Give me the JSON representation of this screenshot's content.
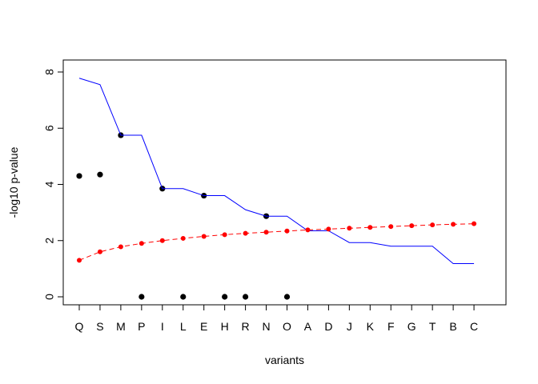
{
  "chart_data": {
    "type": "scatter",
    "title": "",
    "xlabel": "variants",
    "ylabel": "-log10 p-value",
    "ylim": [
      0,
      8
    ],
    "yticks": [
      0,
      2,
      4,
      6,
      8
    ],
    "grid": false,
    "legend": "none",
    "categories": [
      "Q",
      "S",
      "M",
      "P",
      "I",
      "L",
      "E",
      "H",
      "R",
      "N",
      "O",
      "A",
      "D",
      "J",
      "K",
      "F",
      "G",
      "T",
      "B",
      "C"
    ],
    "series": [
      {
        "kind": "points",
        "color": "#000000",
        "values": [
          4.3,
          4.35,
          5.75,
          0,
          3.85,
          0,
          3.6,
          0,
          0,
          2.87,
          0,
          null,
          null,
          null,
          null,
          null,
          null,
          null,
          null,
          null
        ]
      },
      {
        "kind": "step-line",
        "color": "#0000ff",
        "values": [
          7.78,
          7.55,
          5.75,
          5.75,
          3.85,
          3.85,
          3.6,
          3.6,
          3.1,
          2.87,
          2.87,
          2.35,
          2.35,
          1.93,
          1.93,
          1.8,
          1.8,
          1.8,
          1.18,
          1.18
        ]
      },
      {
        "kind": "dashed-line-points",
        "color": "#ff0000",
        "values": [
          1.3,
          1.6,
          1.78,
          1.9,
          2.0,
          2.08,
          2.15,
          2.21,
          2.26,
          2.3,
          2.34,
          2.38,
          2.41,
          2.44,
          2.47,
          2.5,
          2.53,
          2.56,
          2.58,
          2.6
        ]
      }
    ]
  }
}
